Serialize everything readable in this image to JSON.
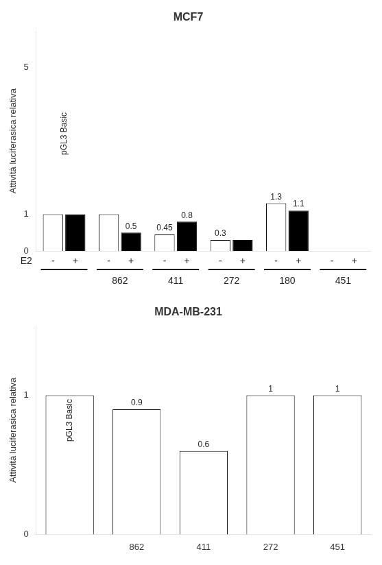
{
  "chart_data": [
    {
      "type": "bar",
      "title": "MCF7",
      "ylabel": "Attività luciferasica relativa",
      "xlabel": "E2",
      "categories": [
        null,
        "862",
        "411",
        "272",
        "180",
        "451"
      ],
      "series": [
        {
          "name": "-",
          "color": "#ffffff",
          "values": [
            1.0,
            1.0,
            0.45,
            0.3,
            1.3,
            0.0
          ],
          "value_labels": [
            null,
            null,
            "0.45",
            "0.3",
            "1.3",
            null
          ]
        },
        {
          "name": "+",
          "color": "#000000",
          "values": [
            1.0,
            0.5,
            0.8,
            0.3,
            1.1,
            0.0
          ],
          "value_labels": [
            null,
            "0.5",
            "0.8",
            null,
            "1.1",
            null
          ]
        }
      ],
      "ylim": [
        0,
        6
      ],
      "yticks": [
        0,
        1,
        5
      ],
      "grid": false,
      "data_labels": true,
      "annotations": [
        {
          "text": "pGL3 Basic",
          "category": 0,
          "y": 3.2
        }
      ]
    },
    {
      "type": "bar",
      "title": "MDA-MB-231",
      "ylabel": "Attività luciferasica relativa",
      "categories": [
        null,
        "862",
        "411",
        "272",
        "451"
      ],
      "values": [
        1.0,
        0.9,
        0.6,
        1.0,
        1.0
      ],
      "value_labels": [
        null,
        "0.9",
        "0.6",
        "1",
        "1"
      ],
      "color": "#ffffff",
      "ylim": [
        0,
        1.5
      ],
      "yticks": [
        0,
        1
      ],
      "grid": false,
      "data_labels": true,
      "annotations": [
        {
          "text": "pGL3 Basic",
          "category": 0,
          "y": 0.82
        }
      ]
    }
  ]
}
